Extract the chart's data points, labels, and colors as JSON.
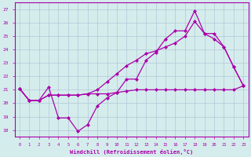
{
  "xlabel": "Windchill (Refroidissement éolien,°C)",
  "xlim": [
    -0.5,
    23.5
  ],
  "ylim": [
    17.5,
    27.5
  ],
  "yticks": [
    18,
    19,
    20,
    21,
    22,
    23,
    24,
    25,
    26,
    27
  ],
  "xticks": [
    0,
    1,
    2,
    3,
    4,
    5,
    6,
    7,
    8,
    9,
    10,
    11,
    12,
    13,
    14,
    15,
    16,
    17,
    18,
    19,
    20,
    21,
    22,
    23
  ],
  "background_color": "#d5ecec",
  "grid_color": "#b0c8d8",
  "line_color": "#aa00aa",
  "series1_x": [
    0,
    1,
    2,
    3,
    4,
    5,
    6,
    7,
    8,
    9,
    10,
    11,
    12,
    13,
    14,
    15,
    16,
    17,
    18,
    19,
    20,
    21,
    22,
    23
  ],
  "series1_y": [
    21.1,
    20.2,
    20.2,
    21.2,
    18.9,
    18.9,
    17.9,
    18.4,
    19.8,
    20.4,
    20.8,
    21.8,
    21.8,
    23.2,
    23.8,
    24.8,
    25.4,
    25.4,
    26.9,
    25.2,
    25.2,
    24.2,
    22.7,
    21.3
  ],
  "series2_x": [
    0,
    1,
    2,
    3,
    4,
    5,
    6,
    7,
    8,
    9,
    10,
    11,
    12,
    13,
    14,
    15,
    16,
    17,
    18,
    19,
    20,
    21,
    22,
    23
  ],
  "series2_y": [
    21.1,
    20.2,
    20.2,
    20.6,
    20.6,
    20.6,
    20.6,
    20.7,
    20.7,
    20.7,
    20.8,
    20.9,
    21.0,
    21.0,
    21.0,
    21.0,
    21.0,
    21.0,
    21.0,
    21.0,
    21.0,
    21.0,
    21.0,
    21.3
  ],
  "series3_x": [
    0,
    1,
    2,
    3,
    4,
    5,
    6,
    7,
    8,
    9,
    10,
    11,
    12,
    13,
    14,
    15,
    16,
    17,
    18,
    19,
    20,
    21,
    22,
    23
  ],
  "series3_y": [
    21.1,
    20.2,
    20.2,
    20.6,
    20.6,
    20.6,
    20.6,
    20.7,
    21.0,
    21.6,
    22.2,
    22.8,
    23.2,
    23.7,
    23.9,
    24.2,
    24.5,
    25.0,
    26.1,
    25.2,
    24.8,
    24.2,
    22.7,
    21.3
  ]
}
